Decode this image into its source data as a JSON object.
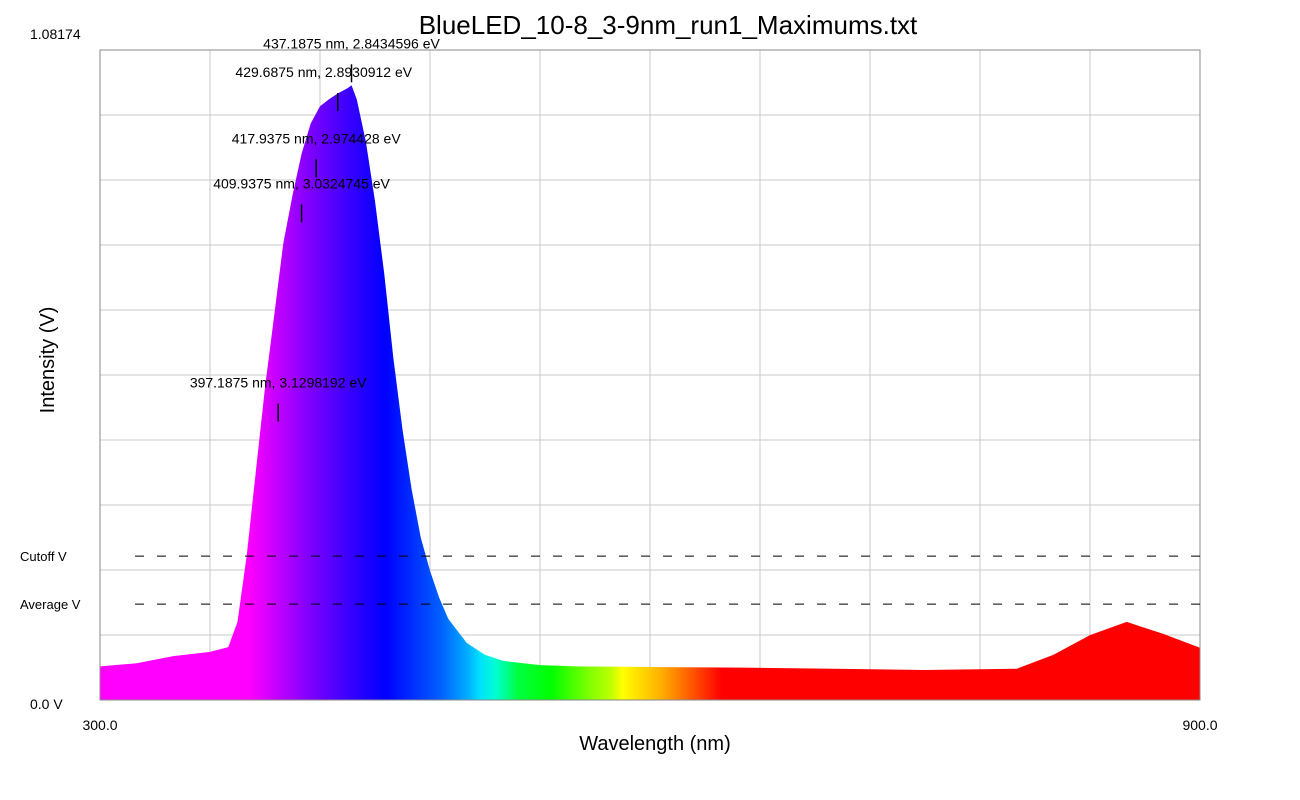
{
  "chart_data": {
    "type": "area",
    "title": "BlueLED_10-8_3-9nm_run1_Maximums.txt",
    "xlabel": "Wavelength (nm)",
    "ylabel": "Intensity (V)",
    "xlim": [
      300.0,
      900.0
    ],
    "ylim": [
      0.0,
      1.08174
    ],
    "x_tick_labels": [
      "300.0",
      "900.0"
    ],
    "y_tick_labels": [
      "0.0 V",
      "1.08174"
    ],
    "grid": true,
    "fill": "wavelength-spectrum-colors",
    "reference_lines": [
      {
        "label": "Cutoff V",
        "y": 0.2395,
        "style": "dashed"
      },
      {
        "label": "Average V",
        "y": 0.1596,
        "style": "dashed"
      }
    ],
    "series": [
      {
        "x": [
          300,
          320,
          340,
          360,
          370,
          375,
          380,
          385,
          390,
          395,
          400,
          405,
          410,
          415,
          420,
          425,
          430,
          435,
          437.2,
          440,
          445,
          450,
          455,
          460,
          465,
          470,
          475,
          480,
          485,
          490,
          500,
          510,
          520,
          540,
          560,
          600,
          650,
          700,
          750,
          800,
          820,
          840,
          860,
          880,
          900
        ],
        "y": [
          0.056,
          0.061,
          0.073,
          0.08,
          0.088,
          0.13,
          0.24,
          0.38,
          0.52,
          0.64,
          0.76,
          0.84,
          0.91,
          0.96,
          0.988,
          1.0,
          1.01,
          1.018,
          1.023,
          1.0,
          0.93,
          0.83,
          0.71,
          0.57,
          0.45,
          0.35,
          0.27,
          0.215,
          0.17,
          0.135,
          0.095,
          0.075,
          0.065,
          0.058,
          0.056,
          0.055,
          0.054,
          0.052,
          0.05,
          0.052,
          0.075,
          0.108,
          0.13,
          0.11,
          0.087
        ]
      }
    ],
    "annotations": [
      {
        "x": 437.1875,
        "y": 1.023,
        "text": "437.1875 nm, 2.8434596 eV"
      },
      {
        "x": 429.6875,
        "y": 1.005,
        "text": "429.6875 nm, 2.8930912 eV"
      },
      {
        "x": 417.9375,
        "y": 0.81,
        "text": "417.9375 nm, 2.974428 eV"
      },
      {
        "x": 409.9375,
        "y": 0.66,
        "text": "409.9375 nm, 3.0324745 eV"
      },
      {
        "x": 397.1875,
        "y": 0.395,
        "text": "397.1875 nm, 3.1298192 eV"
      }
    ]
  }
}
